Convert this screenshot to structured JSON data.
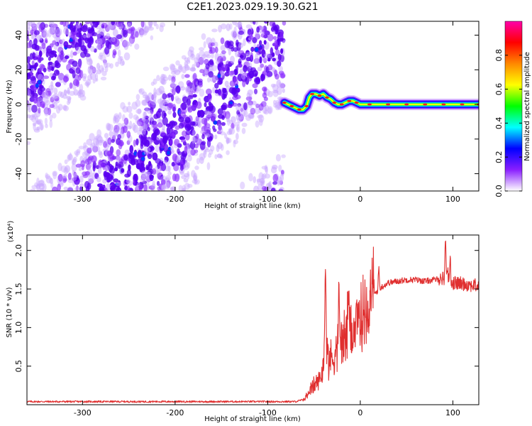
{
  "figure": {
    "title": "C2E1.2023.029.19.30.G21"
  },
  "colors": {
    "snr_line": "#e03030",
    "frame": "#000000",
    "background": "#ffffff"
  },
  "chart_data": [
    {
      "type": "heatmap",
      "name": "spectrogram",
      "xlabel": "Height of straight line (km)",
      "ylabel": "Frequency (Hz)",
      "xlim": [
        -360,
        128
      ],
      "ylim": [
        -50,
        48
      ],
      "x_ticks": [
        -300,
        -200,
        -100,
        0,
        100
      ],
      "x_tick_labels": [
        "-300",
        "-200",
        "-100",
        "0",
        "100"
      ],
      "y_ticks": [
        -40,
        -20,
        0,
        20,
        40
      ],
      "y_tick_labels": [
        "-40",
        "-20",
        "0",
        "20",
        "40"
      ],
      "noise_region_x": [
        -360,
        -82
      ],
      "signal_trace": {
        "x": [
          -82,
          -78,
          -74,
          -70,
          -66,
          -62,
          -58,
          -55,
          -52,
          -48,
          -44,
          -40,
          -36,
          -32,
          -28,
          -24,
          -20,
          -16,
          -12,
          -8,
          -4,
          0,
          10,
          20,
          30,
          40,
          50,
          60,
          70,
          80,
          90,
          100,
          110,
          120,
          128
        ],
        "y": [
          1,
          0,
          -1,
          -2,
          -3,
          -3,
          -1,
          4,
          6,
          6,
          5,
          6,
          4,
          3,
          1,
          0,
          0,
          1,
          2,
          2,
          1,
          0,
          0,
          0,
          0,
          0,
          0,
          0,
          0,
          0,
          0,
          0,
          0,
          0,
          0
        ]
      },
      "colorbar": {
        "label": "Normalized spectral amplitude",
        "range": [
          0,
          1
        ],
        "ticks": [
          0.0,
          0.2,
          0.4,
          0.6,
          0.8
        ],
        "tick_labels": [
          "0.0",
          "0.2",
          "0.4",
          "0.6",
          "0.8"
        ],
        "colors": [
          "#ffffff",
          "#8a1fff",
          "#0000ff",
          "#00ffff",
          "#00ff00",
          "#ffff00",
          "#ff8800",
          "#ff0000",
          "#ff00aa"
        ]
      }
    },
    {
      "type": "line",
      "name": "snr",
      "xlabel": "Height of straight line (km)",
      "ylabel": "SNR (10 * v/v)",
      "y_multiplier": "(x10⁴)",
      "xlim": [
        -360,
        128
      ],
      "ylim": [
        0.0,
        2.2
      ],
      "x_ticks": [
        -300,
        -200,
        -100,
        0,
        100
      ],
      "x_tick_labels": [
        "-300",
        "-200",
        "-100",
        "0",
        "100"
      ],
      "y_ticks": [
        0.5,
        1.0,
        1.5,
        2.0
      ],
      "y_tick_labels": [
        "0.5",
        "1.0",
        "1.5",
        "2.0"
      ],
      "x": [
        -360,
        -300,
        -200,
        -100,
        -70,
        -60,
        -55,
        -50,
        -45,
        -40,
        -37,
        -35,
        -30,
        -25,
        -20,
        -15,
        -10,
        -5,
        0,
        5,
        10,
        20,
        30,
        40,
        50,
        60,
        70,
        80,
        90,
        95,
        100,
        110,
        120,
        128
      ],
      "y": [
        0.04,
        0.04,
        0.04,
        0.04,
        0.04,
        0.07,
        0.18,
        0.25,
        0.3,
        0.45,
        1.1,
        0.6,
        0.6,
        0.75,
        0.8,
        0.9,
        0.95,
        1.0,
        1.1,
        1.25,
        1.35,
        1.5,
        1.58,
        1.6,
        1.62,
        1.62,
        1.6,
        1.62,
        1.64,
        1.62,
        1.58,
        1.57,
        1.55,
        1.54
      ],
      "peaks": {
        "x": [
          -38,
          -23,
          -13,
          11,
          20,
          92,
          94,
          97
        ],
        "y": [
          1.85,
          1.6,
          1.65,
          1.7,
          1.8,
          2.22,
          1.8,
          1.95
        ]
      }
    }
  ]
}
